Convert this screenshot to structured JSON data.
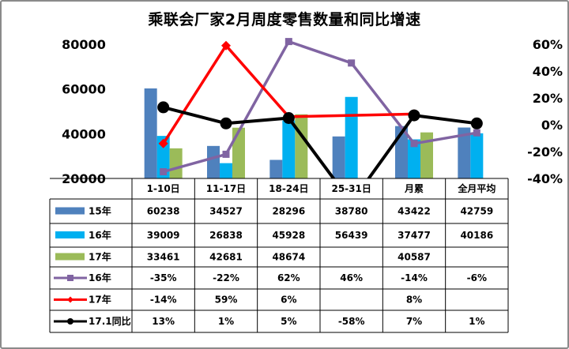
{
  "chart_data": {
    "type": "bar",
    "title": "乘联会厂家2月周度零售数量和同比增速",
    "categories": [
      "1-10日",
      "11-17日",
      "18-24日",
      "25-31日",
      "月累",
      "全月平均"
    ],
    "ylim": [
      20000,
      80000
    ],
    "y_ticks": [
      "80000",
      "60000",
      "40000",
      "20000"
    ],
    "y2lim": [
      -0.4,
      0.6
    ],
    "y2_ticks": [
      "60%",
      "40%",
      "20%",
      "0%",
      "-20%",
      "-40%"
    ],
    "series": [
      {
        "name": "15年",
        "type": "bar",
        "color": "#4F81BD",
        "values": [
          60238,
          34527,
          28296,
          38780,
          43422,
          42759
        ],
        "labels": [
          "60238",
          "34527",
          "28296",
          "38780",
          "43422",
          "42759"
        ]
      },
      {
        "name": "16年",
        "type": "bar",
        "color": "#00B0F0",
        "values": [
          39009,
          26838,
          45928,
          56439,
          37477,
          40186
        ],
        "labels": [
          "39009",
          "26838",
          "45928",
          "56439",
          "37477",
          "40186"
        ]
      },
      {
        "name": "17年",
        "type": "bar",
        "color": "#9BBB59",
        "values": [
          33461,
          42681,
          48674,
          null,
          40587,
          null
        ],
        "labels": [
          "33461",
          "42681",
          "48674",
          "",
          "40587",
          ""
        ]
      },
      {
        "name": "16年",
        "type": "line",
        "axis": "right",
        "color": "#8064A2",
        "marker": "square",
        "values": [
          -0.35,
          -0.22,
          0.62,
          0.46,
          -0.14,
          -0.06
        ],
        "labels": [
          "-35%",
          "-22%",
          "62%",
          "46%",
          "-14%",
          "-6%"
        ]
      },
      {
        "name": "17年",
        "type": "line",
        "axis": "right",
        "color": "#FF0000",
        "marker": "diamond",
        "values": [
          -0.14,
          0.59,
          0.06,
          null,
          0.08,
          null
        ],
        "labels": [
          "-14%",
          "59%",
          "6%",
          "",
          "8%",
          ""
        ]
      },
      {
        "name": "17.1同比",
        "type": "line",
        "axis": "right",
        "color": "#000000",
        "marker": "circle",
        "values": [
          0.13,
          0.01,
          0.05,
          -0.58,
          0.07,
          0.01
        ],
        "labels": [
          "13%",
          "1%",
          "5%",
          "-58%",
          "7%",
          "1%"
        ]
      }
    ]
  }
}
